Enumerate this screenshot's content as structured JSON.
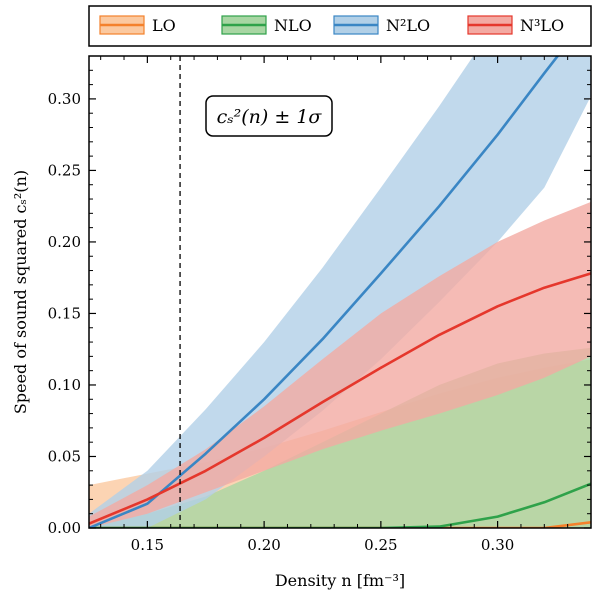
{
  "chart_data": {
    "type": "line",
    "title": "",
    "xlabel": "Density n [fm⁻³]",
    "ylabel": "Speed of sound squared cₛ²(n)",
    "xlim": [
      0.125,
      0.34
    ],
    "ylim": [
      0.0,
      0.33
    ],
    "xticks": [
      0.15,
      0.2,
      0.25,
      0.3
    ],
    "xtick_labels": [
      "0.15",
      "0.20",
      "0.25",
      "0.30"
    ],
    "yticks": [
      0.0,
      0.05,
      0.1,
      0.15,
      0.2,
      0.25,
      0.3
    ],
    "ytick_labels": [
      "0.00",
      "0.05",
      "0.10",
      "0.15",
      "0.20",
      "0.25",
      "0.30"
    ],
    "grid": false,
    "legend_position": "top",
    "vertical_line": {
      "x": 0.164,
      "style": "dashed"
    },
    "annotation": "cₛ²(n) ± 1σ",
    "series": [
      {
        "name": "LO",
        "color": "#f4812c",
        "band_color": "#fbc9a0",
        "x": [
          0.125,
          0.15,
          0.175,
          0.2,
          0.225,
          0.25,
          0.275,
          0.3,
          0.32,
          0.34
        ],
        "y": [
          0.0,
          0.0,
          0.0,
          0.0,
          0.0,
          0.0,
          0.0,
          0.0,
          0.0,
          0.004
        ],
        "lower": [
          0.0,
          0.0,
          0.0,
          0.0,
          0.0,
          0.0,
          0.0,
          0.0,
          0.0,
          0.0
        ],
        "upper": [
          0.03,
          0.038,
          0.046,
          0.056,
          0.068,
          0.081,
          0.094,
          0.105,
          0.112,
          0.118
        ]
      },
      {
        "name": "NLO",
        "color": "#2fa24a",
        "band_color": "#a8d6a3",
        "x": [
          0.125,
          0.15,
          0.175,
          0.2,
          0.225,
          0.25,
          0.275,
          0.3,
          0.32,
          0.34
        ],
        "y": [
          0.0,
          0.0,
          0.0,
          0.0,
          0.0,
          0.0,
          0.001,
          0.008,
          0.018,
          0.031
        ],
        "lower": [
          0.0,
          0.0,
          0.0,
          0.0,
          0.0,
          0.0,
          0.0,
          0.0,
          0.0,
          0.0
        ],
        "upper": [
          0.0,
          0.01,
          0.022,
          0.04,
          0.06,
          0.08,
          0.1,
          0.115,
          0.122,
          0.126
        ]
      },
      {
        "name": "N²LO",
        "color": "#3a86c4",
        "band_color": "#b2d0e7",
        "x": [
          0.125,
          0.15,
          0.175,
          0.2,
          0.225,
          0.25,
          0.275,
          0.3,
          0.32,
          0.34
        ],
        "y": [
          0.0,
          0.017,
          0.052,
          0.09,
          0.132,
          0.178,
          0.225,
          0.275,
          0.318,
          0.36
        ],
        "lower": [
          0.0,
          0.0,
          0.02,
          0.05,
          0.082,
          0.118,
          0.158,
          0.2,
          0.238,
          0.302
        ],
        "upper": [
          0.01,
          0.04,
          0.083,
          0.13,
          0.182,
          0.238,
          0.295,
          0.355,
          0.4,
          0.44
        ]
      },
      {
        "name": "N³LO",
        "color": "#e5372c",
        "band_color": "#f3aaa3",
        "x": [
          0.125,
          0.15,
          0.175,
          0.2,
          0.225,
          0.25,
          0.275,
          0.3,
          0.32,
          0.34
        ],
        "y": [
          0.003,
          0.02,
          0.04,
          0.063,
          0.088,
          0.112,
          0.135,
          0.155,
          0.168,
          0.178
        ],
        "lower": [
          0.0,
          0.01,
          0.025,
          0.04,
          0.055,
          0.068,
          0.08,
          0.093,
          0.105,
          0.12
        ],
        "upper": [
          0.008,
          0.03,
          0.055,
          0.085,
          0.118,
          0.15,
          0.176,
          0.2,
          0.215,
          0.228
        ]
      }
    ]
  }
}
